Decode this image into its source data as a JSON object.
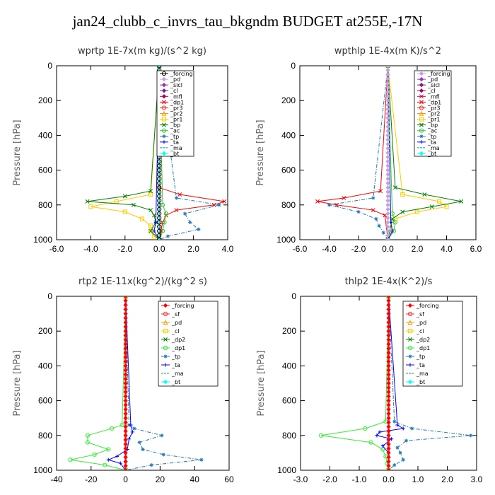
{
  "title": "jan24_clubb_c_invrs_tau_bkgndm  BUDGET at255E,-17N",
  "chart_data": [
    {
      "type": "line",
      "title": "wprtp   1E-7x(m kg)/(s^2 kg)",
      "ylabel": "Pressure [hPa]",
      "xlim": [
        -6,
        4
      ],
      "ylim": [
        1000,
        0
      ],
      "xticks": [
        "-6.0",
        "-4.0",
        "-2.0",
        "0.0",
        "2.0",
        "4.0"
      ],
      "yticks": [
        "0",
        "200",
        "400",
        "600",
        "800",
        "1000"
      ],
      "series": [
        {
          "name": "_forcing",
          "color": "#000000",
          "marker": "circle",
          "p": [
            0,
            500,
            1000
          ],
          "x": [
            0,
            0,
            0
          ]
        },
        {
          "name": "_pd",
          "color": "#c8a0e0",
          "marker": "diamond",
          "p": [
            0,
            1000
          ],
          "x": [
            0,
            0
          ]
        },
        {
          "name": "_sicl",
          "color": "#9b30c0",
          "marker": "diamond",
          "p": [
            0,
            1000
          ],
          "x": [
            0,
            0
          ]
        },
        {
          "name": "_cl",
          "color": "#7a1f8a",
          "marker": "diamond",
          "p": [
            0,
            1000
          ],
          "x": [
            0,
            0
          ]
        },
        {
          "name": "_mfl",
          "color": "#b0006a",
          "marker": "diamond",
          "p": [
            0,
            1000
          ],
          "x": [
            0,
            0
          ]
        },
        {
          "name": "_dp1",
          "color": "#ff0000",
          "marker": "cross",
          "p": [
            0,
            700,
            740,
            780,
            800,
            830,
            860,
            900,
            950,
            1000
          ],
          "x": [
            0,
            0,
            1.2,
            3.8,
            3.2,
            1.0,
            0.4,
            0.2,
            0.1,
            0
          ]
        },
        {
          "name": "_pr3",
          "color": "#ff3030",
          "marker": "circle",
          "p": [
            0,
            1000
          ],
          "x": [
            0,
            0
          ]
        },
        {
          "name": "_pr2",
          "color": "#ff9900",
          "marker": "triangle",
          "p": [
            0,
            1000
          ],
          "x": [
            0,
            0
          ]
        },
        {
          "name": "_pr1",
          "color": "#ffcc00",
          "marker": "square",
          "p": [
            0,
            740,
            780,
            810,
            840,
            880,
            920,
            950,
            980,
            1000
          ],
          "x": [
            0,
            -0.5,
            -2.5,
            -4.0,
            -2.0,
            -1.0,
            -0.5,
            -0.5,
            -0.3,
            0
          ]
        },
        {
          "name": "_bp",
          "color": "#008000",
          "marker": "cross",
          "p": [
            0,
            720,
            750,
            780,
            800,
            830,
            860,
            900,
            950,
            1000
          ],
          "x": [
            0,
            -0.5,
            -2.0,
            -4.2,
            -1.5,
            -0.5,
            -0.3,
            -0.2,
            -0.5,
            0
          ]
        },
        {
          "name": "_ac",
          "color": "#33cc33",
          "marker": "circle",
          "p": [
            0,
            800,
            850,
            900,
            950,
            1000
          ],
          "x": [
            0,
            0.2,
            0.4,
            0.3,
            0.2,
            0
          ]
        },
        {
          "name": "_tp",
          "color": "#1f78b4",
          "marker": "star",
          "p": [
            0,
            760,
            800,
            850,
            900,
            940,
            980,
            1000
          ],
          "x": [
            0,
            1.0,
            3.5,
            1.5,
            1.8,
            2.3,
            0.5,
            0
          ]
        },
        {
          "name": "_ta",
          "color": "#0000ff",
          "marker": "plus",
          "p": [
            0,
            900,
            950,
            1000
          ],
          "x": [
            0,
            -0.2,
            -0.3,
            0
          ]
        },
        {
          "name": "_ma",
          "color": "#00a0a0",
          "marker": "none",
          "p": [
            0,
            1000
          ],
          "x": [
            0,
            0
          ]
        },
        {
          "name": "_bt",
          "color": "#00ffff",
          "marker": "diamond",
          "p": [
            0,
            1000
          ],
          "x": [
            0,
            0
          ]
        }
      ]
    },
    {
      "type": "line",
      "title": "wpthlp   1E-4x(m K)/s^2",
      "ylabel": "Pressure [hPa]",
      "xlim": [
        -6,
        6
      ],
      "ylim": [
        1000,
        0
      ],
      "xticks": [
        "-6.0",
        "-4.0",
        "-2.0",
        "0.0",
        "2.0",
        "4.0",
        "6.0"
      ],
      "yticks": [
        "0",
        "200",
        "400",
        "600",
        "800",
        "1000"
      ],
      "series": [
        {
          "name": "_forcing",
          "color": "#c8a0e0",
          "marker": "diamond",
          "p": [
            0,
            1000
          ],
          "x": [
            0,
            0
          ]
        },
        {
          "name": "_pd",
          "color": "#9b30c0",
          "marker": "diamond",
          "p": [
            0,
            1000
          ],
          "x": [
            0,
            0
          ]
        },
        {
          "name": "_sicl",
          "color": "#7a1f8a",
          "marker": "diamond",
          "p": [
            0,
            1000
          ],
          "x": [
            0,
            0
          ]
        },
        {
          "name": "_cl",
          "color": "#b0006a",
          "marker": "diamond",
          "p": [
            0,
            1000
          ],
          "x": [
            0,
            0
          ]
        },
        {
          "name": "_mfl",
          "color": "#d00050",
          "marker": "cross",
          "p": [
            0,
            1000
          ],
          "x": [
            0,
            0
          ]
        },
        {
          "name": "_dp1",
          "color": "#ff0000",
          "marker": "cross",
          "p": [
            0,
            720,
            760,
            780,
            800,
            830,
            860,
            1000
          ],
          "x": [
            0,
            -0.5,
            -3.0,
            -4.8,
            -3.5,
            -1.0,
            -0.2,
            0
          ]
        },
        {
          "name": "_pr3",
          "color": "#ff3030",
          "marker": "circle",
          "p": [
            0,
            1000
          ],
          "x": [
            0,
            0
          ]
        },
        {
          "name": "_pr2",
          "color": "#ff9900",
          "marker": "triangle",
          "p": [
            0,
            1000
          ],
          "x": [
            0,
            0
          ]
        },
        {
          "name": "_pr1",
          "color": "#ffcc00",
          "marker": "square",
          "p": [
            0,
            740,
            780,
            810,
            840,
            880,
            1000
          ],
          "x": [
            0,
            1.0,
            3.5,
            4.0,
            2.0,
            0.5,
            0
          ]
        },
        {
          "name": "_bp",
          "color": "#008000",
          "marker": "cross",
          "p": [
            0,
            700,
            740,
            780,
            810,
            840,
            880,
            1000
          ],
          "x": [
            0,
            0.5,
            2.5,
            5.0,
            3.0,
            1.0,
            0.3,
            0
          ]
        },
        {
          "name": "_ac",
          "color": "#33cc33",
          "marker": "circle",
          "p": [
            0,
            850,
            900,
            950,
            1000
          ],
          "x": [
            0,
            0.3,
            0.5,
            0.4,
            0
          ]
        },
        {
          "name": "_tp",
          "color": "#1f78b4",
          "marker": "star",
          "p": [
            0,
            760,
            800,
            840,
            880,
            920,
            960,
            1000
          ],
          "x": [
            0,
            -1.0,
            -4.0,
            -2.0,
            -0.8,
            -0.6,
            -0.3,
            0
          ]
        },
        {
          "name": "_ta",
          "color": "#0000ff",
          "marker": "plus",
          "p": [
            0,
            900,
            950,
            1000
          ],
          "x": [
            0,
            0.2,
            0.3,
            0
          ]
        },
        {
          "name": "_ma",
          "color": "#00a0a0",
          "marker": "none",
          "p": [
            0,
            1000
          ],
          "x": [
            0,
            0
          ]
        },
        {
          "name": "_bt",
          "color": "#00ffff",
          "marker": "diamond",
          "p": [
            0,
            1000
          ],
          "x": [
            0,
            0
          ]
        }
      ]
    },
    {
      "type": "line",
      "title": "rtp2   1E-11x(kg^2)/(kg^2 s)",
      "ylabel": "Pressure [hPa]",
      "xlim": [
        -40,
        60
      ],
      "ylim": [
        1000,
        0
      ],
      "xticks": [
        "-40",
        "-20",
        "0",
        "20",
        "40",
        "60"
      ],
      "yticks": [
        "0",
        "200",
        "400",
        "600",
        "800",
        "1000"
      ],
      "series": [
        {
          "name": "_forcing",
          "color": "#ff0000",
          "marker": "diamond",
          "p": [
            0,
            500,
            1000
          ],
          "x": [
            0,
            0,
            0
          ]
        },
        {
          "name": "_sf",
          "color": "#ff3030",
          "marker": "circle",
          "p": [
            0,
            1000
          ],
          "x": [
            0,
            0
          ]
        },
        {
          "name": "_pd",
          "color": "#ff9900",
          "marker": "triangle",
          "p": [
            0,
            1000
          ],
          "x": [
            0,
            0
          ]
        },
        {
          "name": "_cl",
          "color": "#ffcc00",
          "marker": "square",
          "p": [
            0,
            1000
          ],
          "x": [
            0,
            0
          ]
        },
        {
          "name": "_dp2",
          "color": "#008000",
          "marker": "cross",
          "p": [
            0,
            1000
          ],
          "x": [
            0,
            0
          ]
        },
        {
          "name": "_dp1",
          "color": "#33ee33",
          "marker": "circle",
          "p": [
            0,
            740,
            760,
            800,
            840,
            880,
            910,
            940,
            970,
            1000
          ],
          "x": [
            0,
            -2,
            -8,
            -22,
            -22,
            -10,
            -18,
            -32,
            -12,
            0
          ]
        },
        {
          "name": "_tp",
          "color": "#1f78b4",
          "marker": "star",
          "p": [
            0,
            740,
            760,
            800,
            840,
            880,
            910,
            940,
            970,
            1000
          ],
          "x": [
            0,
            2,
            5,
            21,
            8,
            10,
            22,
            44,
            15,
            0
          ]
        },
        {
          "name": "_ta",
          "color": "#0000ff",
          "marker": "plus",
          "p": [
            0,
            740,
            780,
            820,
            880,
            920,
            940,
            960,
            1000
          ],
          "x": [
            0,
            3,
            4,
            2,
            1,
            -5,
            -10,
            -3,
            0
          ]
        },
        {
          "name": "_ma",
          "color": "#00a0a0",
          "marker": "none",
          "p": [
            0,
            1000
          ],
          "x": [
            0,
            0
          ]
        },
        {
          "name": "_bt",
          "color": "#00ffff",
          "marker": "diamond",
          "p": [
            0,
            1000
          ],
          "x": [
            0,
            0
          ]
        }
      ]
    },
    {
      "type": "line",
      "title": "thlp2   1E-4x(K^2)/s",
      "ylabel": "Pressure [hPa]",
      "xlim": [
        -3,
        3
      ],
      "ylim": [
        1000,
        0
      ],
      "xticks": [
        "-3.0",
        "-2.0",
        "-1.0",
        "0.0",
        "1.0",
        "2.0",
        "3.0"
      ],
      "yticks": [
        "0",
        "200",
        "400",
        "600",
        "800",
        "1000"
      ],
      "series": [
        {
          "name": "_forcing",
          "color": "#ff0000",
          "marker": "diamond",
          "p": [
            0,
            500,
            1000
          ],
          "x": [
            0,
            0,
            0
          ]
        },
        {
          "name": "_sf",
          "color": "#ff3030",
          "marker": "circle",
          "p": [
            0,
            1000
          ],
          "x": [
            0,
            0
          ]
        },
        {
          "name": "_pd",
          "color": "#ff9900",
          "marker": "triangle",
          "p": [
            0,
            1000
          ],
          "x": [
            0,
            0
          ]
        },
        {
          "name": "_cl",
          "color": "#ffcc00",
          "marker": "square",
          "p": [
            0,
            1000
          ],
          "x": [
            0,
            0
          ]
        },
        {
          "name": "_dp2",
          "color": "#008000",
          "marker": "cross",
          "p": [
            0,
            1000
          ],
          "x": [
            0,
            0
          ]
        },
        {
          "name": "_dp1",
          "color": "#33ee33",
          "marker": "circle",
          "p": [
            0,
            720,
            760,
            800,
            840,
            880,
            920,
            960,
            1000
          ],
          "x": [
            0,
            -0.1,
            -0.8,
            -2.3,
            -0.6,
            -0.2,
            -0.1,
            -0.05,
            0
          ]
        },
        {
          "name": "_tp",
          "color": "#1f78b4",
          "marker": "star",
          "p": [
            0,
            720,
            760,
            800,
            830,
            870,
            900,
            940,
            970,
            1000
          ],
          "x": [
            0,
            0.2,
            0.8,
            2.8,
            0.6,
            0.3,
            0.4,
            0.5,
            0.2,
            0
          ]
        },
        {
          "name": "_ta",
          "color": "#0000ff",
          "marker": "plus",
          "p": [
            0,
            740,
            760,
            780,
            800,
            820,
            860,
            900,
            1000
          ],
          "x": [
            0,
            0.3,
            0.5,
            -0.3,
            -0.4,
            0.1,
            -0.2,
            0,
            0
          ]
        },
        {
          "name": "_ma",
          "color": "#00a0a0",
          "marker": "none",
          "p": [
            0,
            1000
          ],
          "x": [
            0,
            0
          ]
        },
        {
          "name": "_bt",
          "color": "#00ffff",
          "marker": "diamond",
          "p": [
            0,
            1000
          ],
          "x": [
            0,
            0
          ]
        }
      ]
    }
  ]
}
